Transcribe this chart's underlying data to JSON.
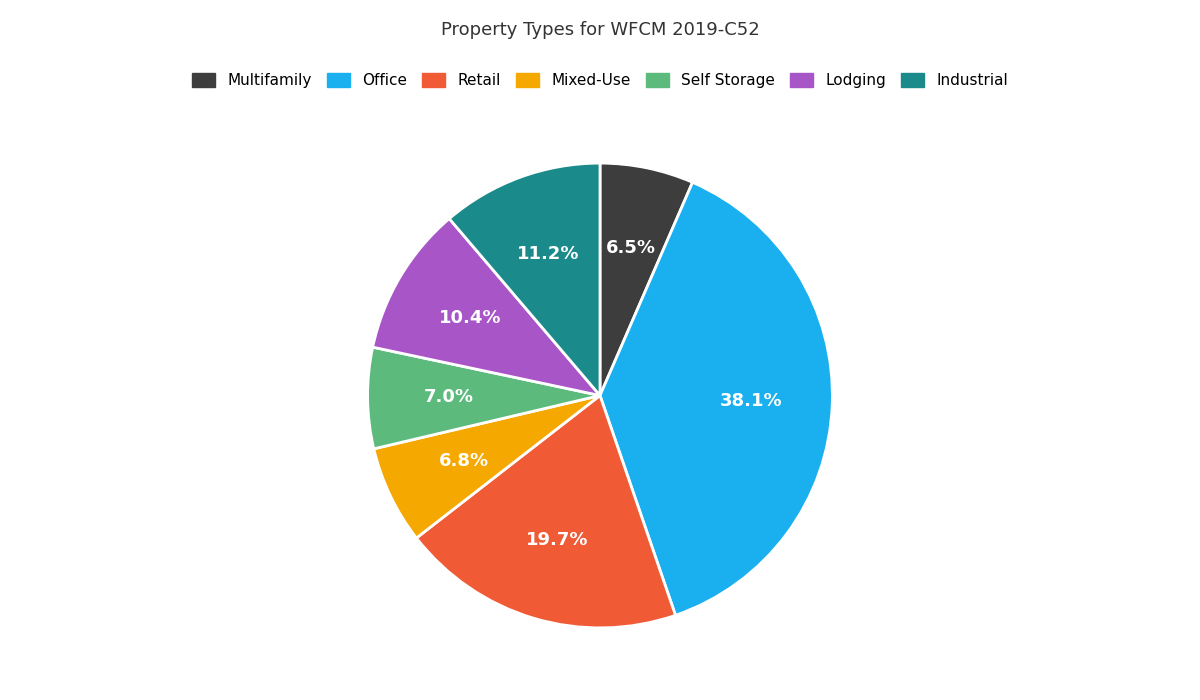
{
  "title": "Property Types for WFCM 2019-C52",
  "labels": [
    "Multifamily",
    "Office",
    "Retail",
    "Mixed-Use",
    "Self Storage",
    "Lodging",
    "Industrial"
  ],
  "values": [
    6.5,
    38.1,
    19.7,
    6.8,
    7.0,
    10.4,
    11.2
  ],
  "colors": [
    "#3d3d3d",
    "#1ab0f0",
    "#f05a35",
    "#f5a800",
    "#5dba7d",
    "#a855c8",
    "#1a8a8a"
  ],
  "pct_labels": [
    "6.5%",
    "38.1%",
    "19.7%",
    "6.8%",
    "7.0%",
    "10.4%",
    "11.2%"
  ],
  "startangle": 90,
  "figsize": [
    12,
    7
  ],
  "dpi": 100,
  "title_fontsize": 13,
  "label_fontsize": 13,
  "legend_fontsize": 11,
  "background_color": "#ffffff"
}
